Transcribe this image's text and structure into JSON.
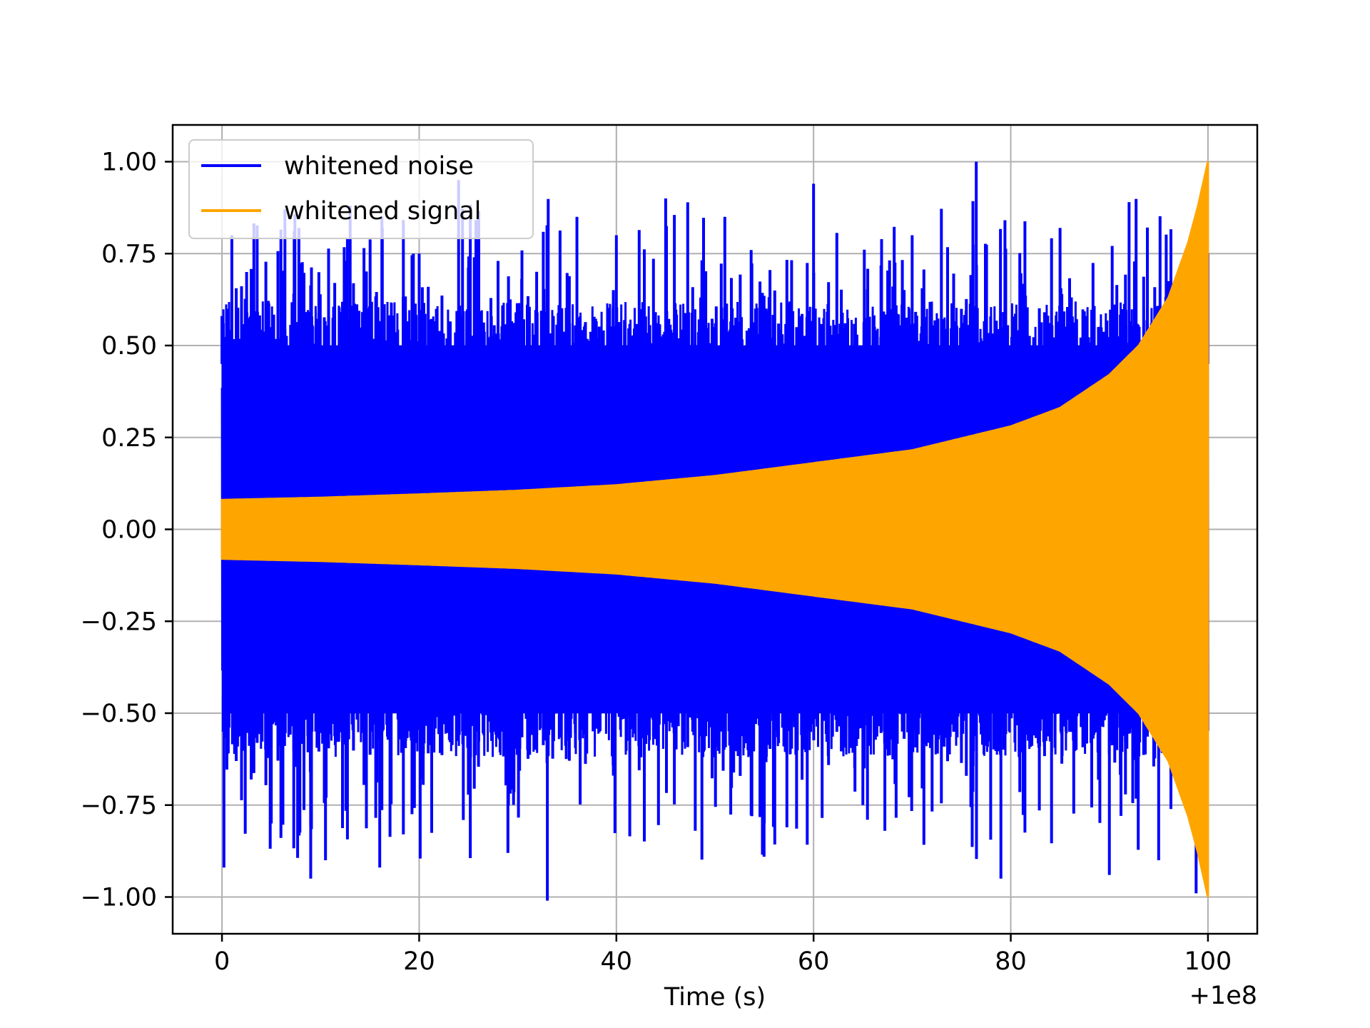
{
  "chart_data": {
    "type": "line",
    "title": "",
    "xlabel": "Time (s)",
    "ylabel": "",
    "x_offset_label": "+1e8",
    "xlim": [
      -5,
      105
    ],
    "ylim": [
      -1.1,
      1.1
    ],
    "xticks": [
      0,
      20,
      40,
      60,
      80,
      100
    ],
    "xtick_labels": [
      "0",
      "20",
      "40",
      "60",
      "80",
      "100"
    ],
    "yticks": [
      1.0,
      0.75,
      0.5,
      0.25,
      0.0,
      -0.25,
      -0.5,
      -0.75,
      -1.0
    ],
    "ytick_labels": [
      "1.00",
      "0.75",
      "0.50",
      "0.25",
      "0.00",
      "−0.25",
      "−0.50",
      "−0.75",
      "−1.00"
    ],
    "grid": true,
    "legend_position": "top-left",
    "series": [
      {
        "name": "whitened noise",
        "color": "#0000ff",
        "x": [
          0,
          0.2,
          0.6,
          1.0,
          2.5,
          5.0,
          7.8,
          9.0,
          10.5,
          13.0,
          16.0,
          20.0,
          24.0,
          28.0,
          29.0,
          33.0,
          36.0,
          40.0,
          45.0,
          48.0,
          51.0,
          55.0,
          60.0,
          65.0,
          70.0,
          76.5,
          79.0,
          85.0,
          90.0,
          92.0,
          95.0,
          98.8,
          100.0
        ],
        "y": [
          0.58,
          -0.92,
          0.6,
          0.8,
          0.7,
          -0.8,
          0.82,
          -0.95,
          -0.9,
          0.88,
          -0.92,
          0.75,
          0.95,
          0.73,
          -0.88,
          -1.01,
          0.85,
          0.8,
          0.9,
          -0.82,
          0.85,
          -0.8,
          0.94,
          -0.75,
          0.8,
          1.0,
          -0.95,
          0.82,
          -0.94,
          0.89,
          -0.9,
          -0.99,
          0.75
        ]
      },
      {
        "name": "whitened signal",
        "color": "#ffa500",
        "x": [
          0,
          10,
          20,
          30,
          40,
          50,
          60,
          70,
          80,
          85,
          90,
          93,
          96,
          98,
          99,
          100
        ],
        "y": [
          0.08,
          0.086,
          0.095,
          0.105,
          0.12,
          0.145,
          0.18,
          0.215,
          0.28,
          0.33,
          0.42,
          0.5,
          0.63,
          0.78,
          0.88,
          1.0
        ]
      }
    ]
  }
}
